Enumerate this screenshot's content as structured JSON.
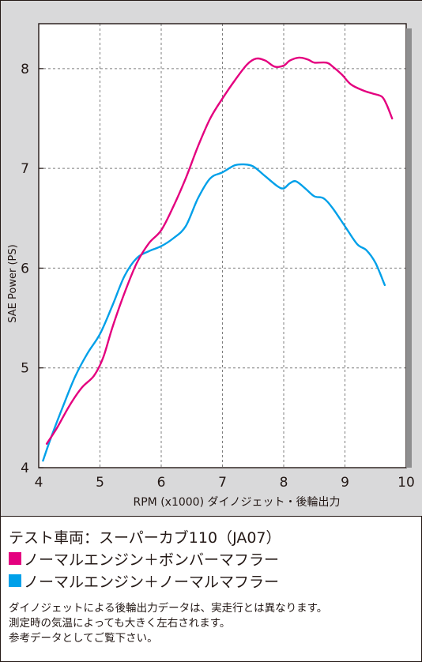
{
  "chart_data": {
    "type": "line",
    "title": "",
    "xlabel": "RPM (x1000) ダイノジェット・後輪出力",
    "ylabel": "SAE Power (PS)",
    "xlim": [
      4,
      10
    ],
    "ylim": [
      4,
      8.45
    ],
    "x_ticks": [
      4,
      5,
      6,
      7,
      8,
      9,
      10
    ],
    "y_ticks": [
      4,
      5,
      6,
      7,
      8
    ],
    "grid": "dashed-vertical-and-horizontal",
    "series": [
      {
        "name": "ノーマルエンジン＋ボンバーマフラー",
        "color": "#e4007f",
        "points": [
          [
            4.13,
            4.24
          ],
          [
            4.3,
            4.4
          ],
          [
            4.5,
            4.62
          ],
          [
            4.7,
            4.8
          ],
          [
            4.9,
            4.92
          ],
          [
            5.05,
            5.1
          ],
          [
            5.2,
            5.4
          ],
          [
            5.4,
            5.75
          ],
          [
            5.6,
            6.05
          ],
          [
            5.8,
            6.25
          ],
          [
            6.0,
            6.38
          ],
          [
            6.2,
            6.62
          ],
          [
            6.4,
            6.9
          ],
          [
            6.6,
            7.22
          ],
          [
            6.8,
            7.5
          ],
          [
            7.0,
            7.7
          ],
          [
            7.2,
            7.88
          ],
          [
            7.4,
            8.04
          ],
          [
            7.55,
            8.1
          ],
          [
            7.7,
            8.08
          ],
          [
            7.85,
            8.02
          ],
          [
            8.0,
            8.03
          ],
          [
            8.1,
            8.08
          ],
          [
            8.25,
            8.11
          ],
          [
            8.4,
            8.09
          ],
          [
            8.5,
            8.06
          ],
          [
            8.7,
            8.06
          ],
          [
            8.8,
            8.02
          ],
          [
            8.95,
            7.94
          ],
          [
            9.1,
            7.84
          ],
          [
            9.3,
            7.78
          ],
          [
            9.45,
            7.75
          ],
          [
            9.6,
            7.72
          ],
          [
            9.68,
            7.64
          ],
          [
            9.77,
            7.5
          ]
        ]
      },
      {
        "name": "ノーマルエンジン＋ノーマルマフラー",
        "color": "#00a0e9",
        "points": [
          [
            4.07,
            4.07
          ],
          [
            4.2,
            4.3
          ],
          [
            4.4,
            4.62
          ],
          [
            4.6,
            4.92
          ],
          [
            4.8,
            5.15
          ],
          [
            5.0,
            5.34
          ],
          [
            5.2,
            5.62
          ],
          [
            5.4,
            5.92
          ],
          [
            5.6,
            6.1
          ],
          [
            5.8,
            6.17
          ],
          [
            6.0,
            6.22
          ],
          [
            6.2,
            6.3
          ],
          [
            6.4,
            6.42
          ],
          [
            6.6,
            6.7
          ],
          [
            6.8,
            6.9
          ],
          [
            7.0,
            6.96
          ],
          [
            7.2,
            7.03
          ],
          [
            7.35,
            7.04
          ],
          [
            7.5,
            7.02
          ],
          [
            7.7,
            6.92
          ],
          [
            7.9,
            6.82
          ],
          [
            8.0,
            6.8
          ],
          [
            8.1,
            6.85
          ],
          [
            8.2,
            6.87
          ],
          [
            8.35,
            6.8
          ],
          [
            8.5,
            6.72
          ],
          [
            8.65,
            6.7
          ],
          [
            8.8,
            6.6
          ],
          [
            9.0,
            6.42
          ],
          [
            9.2,
            6.24
          ],
          [
            9.35,
            6.18
          ],
          [
            9.5,
            6.05
          ],
          [
            9.65,
            5.83
          ]
        ]
      }
    ]
  },
  "info": {
    "model": "テスト車両：スーパーカブ110（JA07）",
    "legend": [
      {
        "label": "ノーマルエンジン＋ボンバーマフラー",
        "color": "#e4007f"
      },
      {
        "label": "ノーマルエンジン＋ノーマルマフラー",
        "color": "#00a0e9"
      }
    ],
    "notes": [
      "ダイノジェットによる後輪出力データは、実走行とは異なります。",
      "測定時の気温によっても大きく左右されます。",
      "参考データとしてご覧下さい。"
    ]
  }
}
